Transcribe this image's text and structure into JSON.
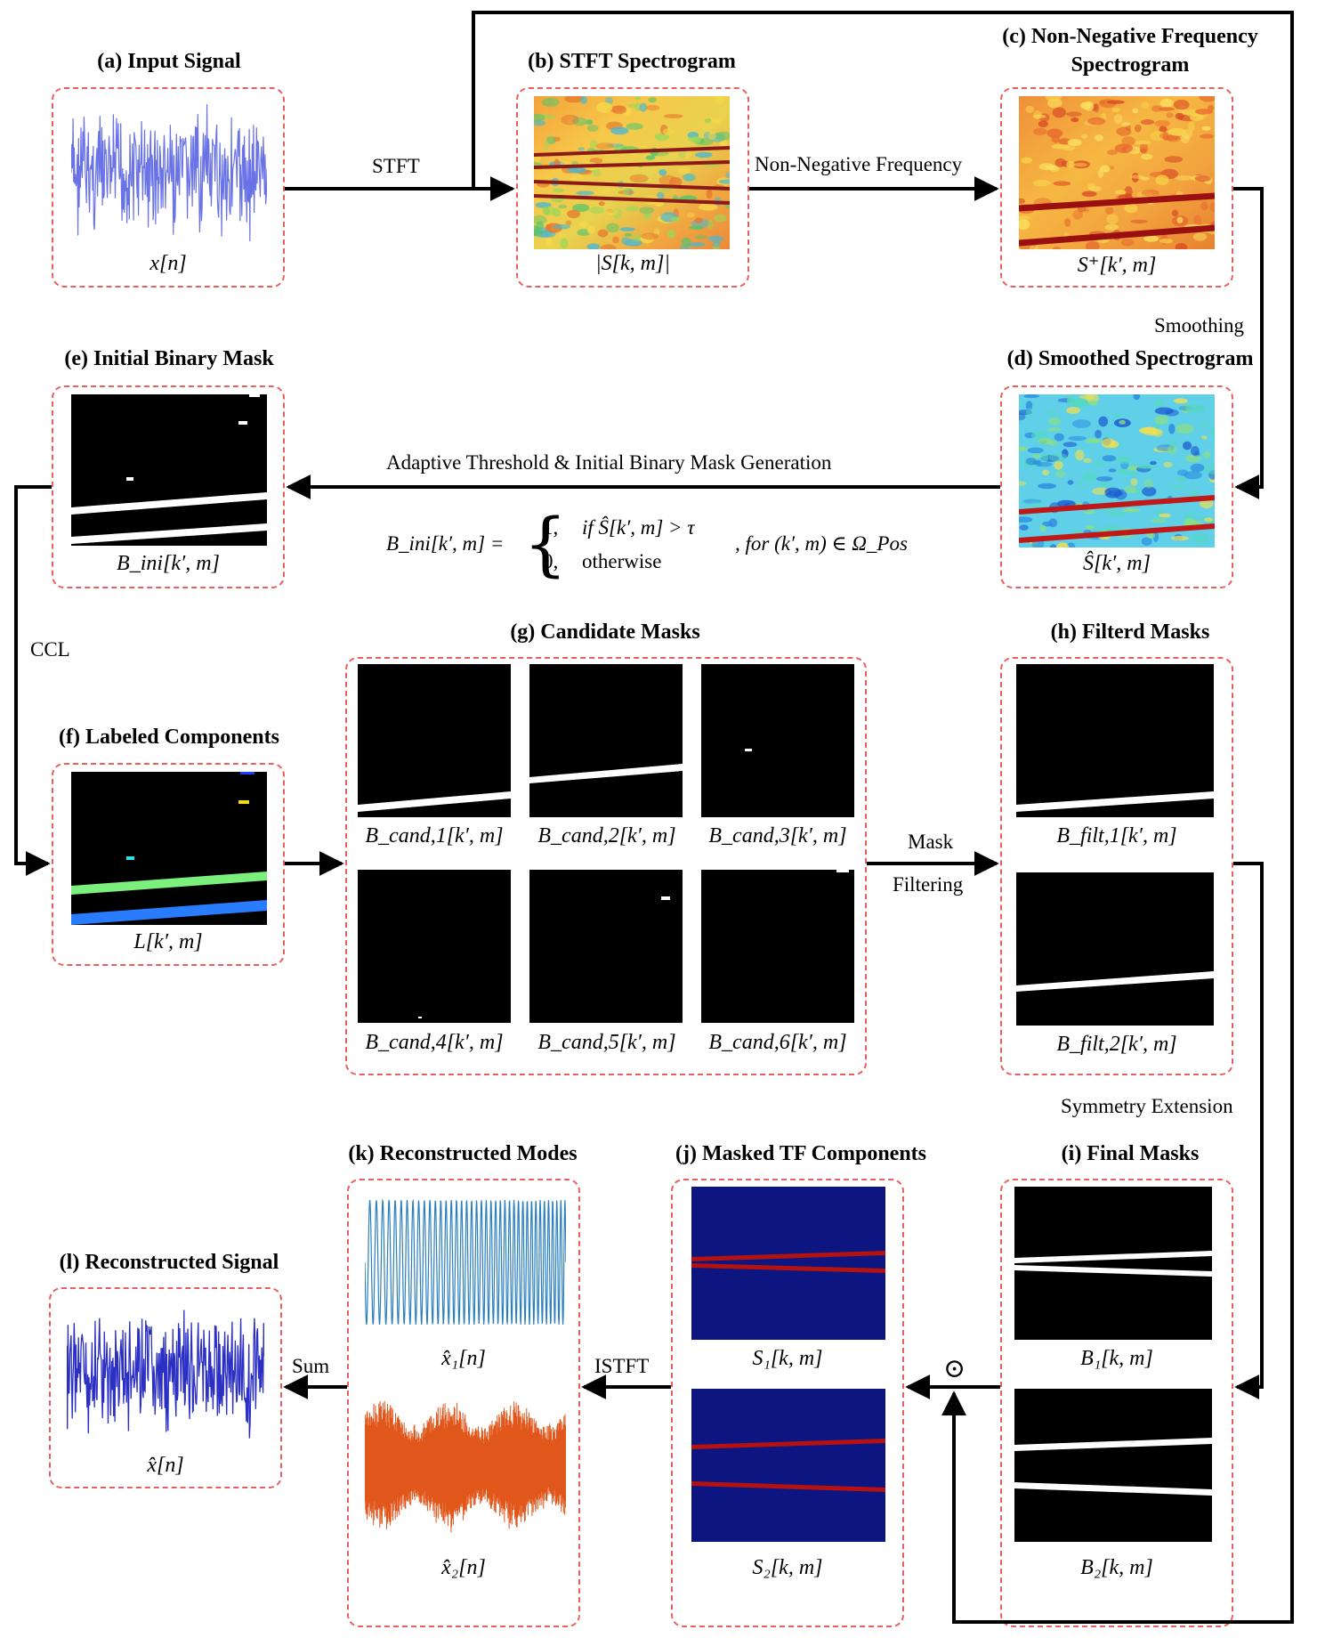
{
  "panels": {
    "a": {
      "title": "(a) Input Signal",
      "label": "x[n]"
    },
    "b": {
      "title": "(b) STFT Spectrogram",
      "label": "|S[k, m]|"
    },
    "c": {
      "title_line1": "(c) Non-Negative Frequency",
      "title_line2": "Spectrogram",
      "label": "S⁺[k′, m]"
    },
    "d": {
      "title": "(d) Smoothed Spectrogram",
      "label": "Ŝ[k′, m]"
    },
    "e": {
      "title": "(e) Initial Binary Mask",
      "label": "B_ini[k′, m]"
    },
    "f": {
      "title": "(f) Labeled Components",
      "label": "L[k′, m]"
    },
    "g": {
      "title": "(g) Candidate Masks",
      "labels": [
        "B_cand,1[k′, m]",
        "B_cand,2[k′, m]",
        "B_cand,3[k′, m]",
        "B_cand,4[k′, m]",
        "B_cand,5[k′, m]",
        "B_cand,6[k′, m]"
      ]
    },
    "h": {
      "title": "(h) Filterd Masks",
      "labels": [
        "B_filt,1[k′, m]",
        "B_filt,2[k′, m]"
      ]
    },
    "i": {
      "title": "(i) Final Masks",
      "labels": [
        "B₁[k, m]",
        "B₂[k, m]"
      ]
    },
    "j": {
      "title": "(j) Masked TF Components",
      "labels": [
        "S₁[k, m]",
        "S₂[k, m]"
      ]
    },
    "k": {
      "title": "(k) Reconstructed Modes",
      "labels": [
        "x̂₁[n]",
        "x̂₂[n]"
      ]
    },
    "l": {
      "title": "(l) Reconstructed Signal",
      "label": "x̂[n]"
    }
  },
  "edges": {
    "stft": "STFT",
    "nonneg": "Non-Negative Frequency",
    "smoothing": "Smoothing",
    "threshold": "Adaptive Threshold & Initial Binary Mask Generation",
    "ccl": "CCL",
    "mask_filtering_1": "Mask",
    "mask_filtering_2": "Filtering",
    "symmetry": "Symmetry Extension",
    "istft": "ISTFT",
    "sum": "Sum",
    "odot": "⊙"
  },
  "equation": {
    "lhs": "B_ini[k′, m] =",
    "case1_val": "1,",
    "case1_cond": "if Ŝ[k′, m] > τ",
    "case2_val": "0,",
    "case2_cond": "otherwise",
    "domain": ", for (k′, m) ∈ Ω_Pos"
  },
  "colors": {
    "input_signal": "#6a73e6",
    "mode1": "#2a7fbf",
    "mode2": "#e0561b",
    "recon": "#2b2fc4",
    "dashed_box": "#e8605e",
    "tf_background": "#0d1680",
    "tf_ridge": "#b3120f"
  }
}
